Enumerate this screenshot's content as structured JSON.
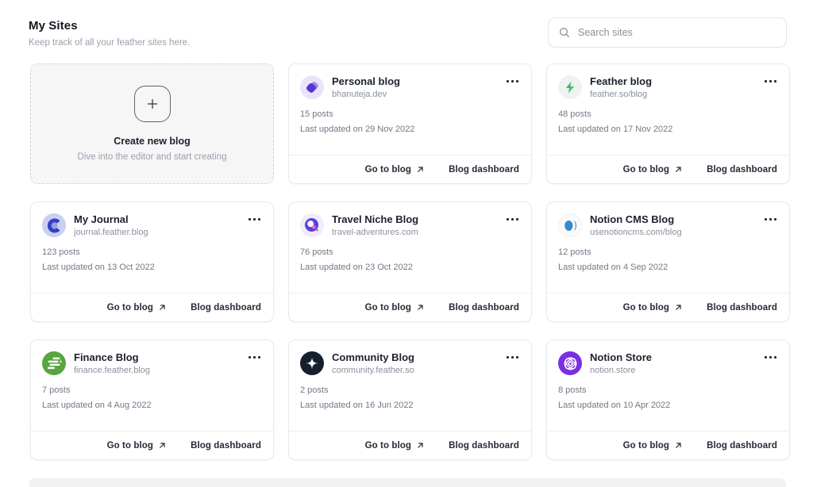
{
  "header": {
    "title": "My Sites",
    "subtitle": "Keep track of all your feather sites here."
  },
  "search": {
    "placeholder": "Search sites"
  },
  "create_card": {
    "title": "Create new blog",
    "subtitle": "Dive into the editor and start creating"
  },
  "card_actions": {
    "go_to_blog": "Go to blog",
    "blog_dashboard": "Blog dashboard"
  },
  "icons": {
    "search": "magnifying-glass",
    "card_menu": "ellipsis-horizontal-dots",
    "go_to_blog_arrow": "arrow-up-right",
    "create": "plus-in-rounded-square"
  },
  "colors": {
    "card_border": "#e8eaed",
    "text_primary": "#1c212c",
    "text_muted": "#8a909c",
    "create_card_bg": "#f6f6f7"
  },
  "sites": [
    {
      "name": "Personal blog",
      "domain": "bhanuteja.dev",
      "posts_label": "15 posts",
      "updated_label": "Last updated on 29 Nov 2022",
      "icon": "personal-blog-logo",
      "avatar_bg": "#eae4fb",
      "logo_colors": [
        "#5636d3",
        "#9d89ef"
      ]
    },
    {
      "name": "Feather blog",
      "domain": "feather.so/blog",
      "posts_label": "48 posts",
      "updated_label": "Last updated on 17 Nov 2022",
      "icon": "feather-blog-logo",
      "avatar_bg": "#eff1f2",
      "logo_colors": [
        "#42c474",
        "#28a055"
      ]
    },
    {
      "name": "My Journal",
      "domain": "journal.feather.blog",
      "posts_label": "123 posts",
      "updated_label": "Last updated on 13 Oct 2022",
      "icon": "my-journal-logo",
      "avatar_bg": "#c9d1f1",
      "logo_colors": [
        "#3540c8",
        "#94a2d9"
      ]
    },
    {
      "name": "Travel Niche Blog",
      "domain": "travel-adventures.com",
      "posts_label": "76 posts",
      "updated_label": "Last updated on 23 Oct 2022",
      "icon": "travel-blog-logo",
      "avatar_bg": "#f1ecfd",
      "logo_colors": [
        "#5a3fe0",
        "#ee6fa6"
      ]
    },
    {
      "name": "Notion CMS Blog",
      "domain": "usenotioncms.com/blog",
      "posts_label": "12 posts",
      "updated_label": "Last updated on 4 Sep 2022",
      "icon": "notion-cms-logo",
      "avatar_bg": "#fafafb",
      "logo_colors": [
        "#358bce"
      ]
    },
    {
      "name": "Finance Blog",
      "domain": "finance.feather.blog",
      "posts_label": "7 posts",
      "updated_label": "Last updated on 4 Aug 2022",
      "icon": "finance-blog-logo",
      "avatar_bg": "#58a53f",
      "logo_colors": [
        "#ffffff"
      ]
    },
    {
      "name": "Community Blog",
      "domain": "community.feather.so",
      "posts_label": "2 posts",
      "updated_label": "Last updated on 16 Jun 2022",
      "icon": "community-blog-logo",
      "avatar_bg": "#16202c",
      "logo_colors": [
        "#ffffff"
      ]
    },
    {
      "name": "Notion Store",
      "domain": "notion.store",
      "posts_label": "8 posts",
      "updated_label": "Last updated on 10 Apr 2022",
      "icon": "notion-store-logo",
      "avatar_bg": "#7a2fe5",
      "logo_colors": [
        "#ffffff"
      ]
    }
  ]
}
